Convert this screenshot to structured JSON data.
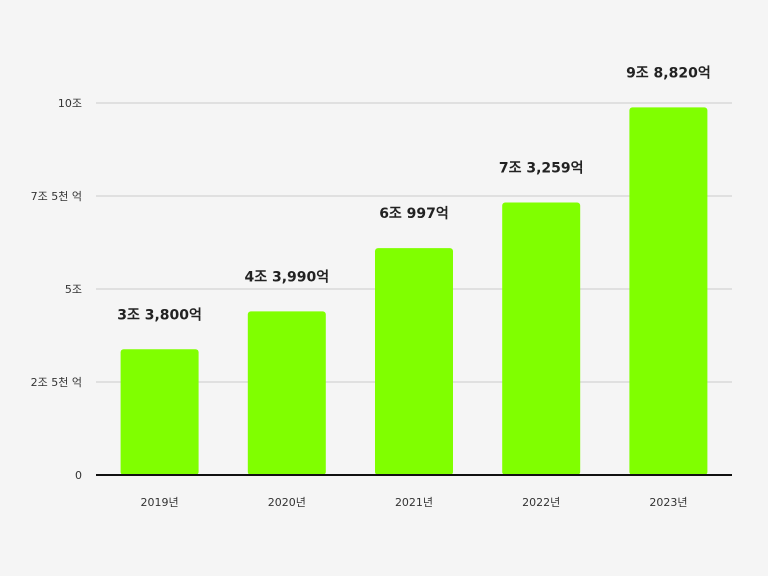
{
  "chart_data": {
    "type": "bar",
    "title": "",
    "xlabel": "",
    "ylabel": "",
    "categories": [
      "2019년",
      "2020년",
      "2021년",
      "2022년",
      "2023년"
    ],
    "values": [
      33800,
      43990,
      60997,
      73259,
      98820
    ],
    "value_unit": "억",
    "data_labels": [
      "3조 3,800억",
      "4조 3,990억",
      "6조 997억",
      "7조 3,259억",
      "9조 8,820억"
    ],
    "yticks": [
      {
        "value": 0,
        "label": "0"
      },
      {
        "value": 25000,
        "label": "2조 5천 억"
      },
      {
        "value": 50000,
        "label": "5조"
      },
      {
        "value": 75000,
        "label": "7조 5천 억"
      },
      {
        "value": 100000,
        "label": "10조"
      }
    ],
    "ylim": [
      0,
      100000
    ],
    "grid": true,
    "legend": "none",
    "colors": {
      "bar": "#80ff00",
      "grid": "#cccccc",
      "axis": "#111111",
      "background": "#f5f5f5"
    }
  }
}
